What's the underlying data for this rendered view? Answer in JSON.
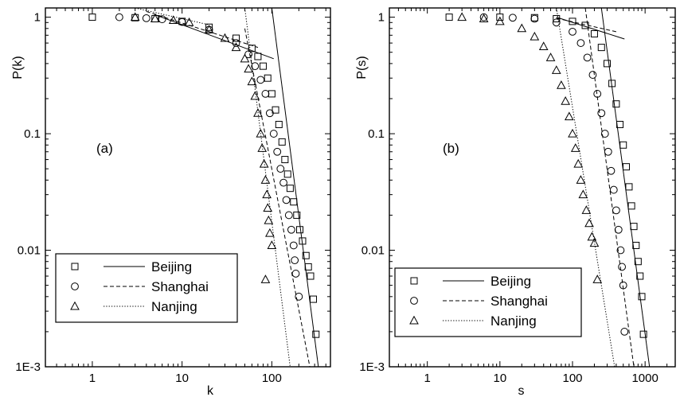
{
  "chart_data": [
    {
      "type": "scatter",
      "panel_label": "(a)",
      "xlabel": "k",
      "ylabel": "P(k)",
      "xscale": "log",
      "yscale": "log",
      "xlim": [
        0.3,
        450
      ],
      "ylim": [
        0.001,
        1.2
      ],
      "x_ticks": [
        1,
        10,
        100
      ],
      "x_tick_labels": [
        "1",
        "10",
        "100"
      ],
      "y_ticks": [
        0.001,
        0.01,
        0.1,
        1
      ],
      "y_tick_labels": [
        "1E-3",
        "0.01",
        "0.1",
        "1"
      ],
      "legend_position": "bottom-left",
      "series": [
        {
          "name": "Beijing",
          "marker": "square",
          "line_style": "solid",
          "points": [
            [
              1,
              1
            ],
            [
              3,
              0.99
            ],
            [
              5,
              0.97
            ],
            [
              10,
              0.92
            ],
            [
              20,
              0.82
            ],
            [
              40,
              0.66
            ],
            [
              60,
              0.54
            ],
            [
              70,
              0.46
            ],
            [
              80,
              0.38
            ],
            [
              90,
              0.3
            ],
            [
              100,
              0.22
            ],
            [
              110,
              0.16
            ],
            [
              120,
              0.12
            ],
            [
              130,
              0.085
            ],
            [
              140,
              0.06
            ],
            [
              150,
              0.045
            ],
            [
              160,
              0.034
            ],
            [
              175,
              0.026
            ],
            [
              190,
              0.02
            ],
            [
              205,
              0.015
            ],
            [
              220,
              0.012
            ],
            [
              240,
              0.009
            ],
            [
              255,
              0.0072
            ],
            [
              270,
              0.006
            ],
            [
              290,
              0.0038
            ],
            [
              310,
              0.0019
            ]
          ],
          "fits": [
            {
              "x": [
                5,
                105
              ],
              "y": [
                1.05,
                0.44
              ]
            },
            {
              "x": [
                100,
                330
              ],
              "y": [
                1.2,
                0.001
              ]
            }
          ]
        },
        {
          "name": "Shanghai",
          "marker": "circle",
          "line_style": "dashed",
          "points": [
            [
              2,
              1
            ],
            [
              4,
              0.98
            ],
            [
              6,
              0.96
            ],
            [
              10,
              0.91
            ],
            [
              20,
              0.78
            ],
            [
              40,
              0.6
            ],
            [
              55,
              0.48
            ],
            [
              65,
              0.38
            ],
            [
              75,
              0.29
            ],
            [
              85,
              0.22
            ],
            [
              95,
              0.15
            ],
            [
              105,
              0.1
            ],
            [
              115,
              0.07
            ],
            [
              125,
              0.05
            ],
            [
              135,
              0.038
            ],
            [
              145,
              0.027
            ],
            [
              155,
              0.02
            ],
            [
              165,
              0.015
            ],
            [
              175,
              0.011
            ],
            [
              180,
              0.0082
            ],
            [
              185,
              0.0063
            ],
            [
              200,
              0.004
            ]
          ],
          "fits": [
            {
              "x": [
                4,
                70
              ],
              "y": [
                1.12,
                0.55
              ]
            },
            {
              "x": [
                50,
                265
              ],
              "y": [
                0.8,
                0.001
              ]
            }
          ]
        },
        {
          "name": "Nanjing",
          "marker": "triangle",
          "line_style": "dotted",
          "points": [
            [
              3,
              1
            ],
            [
              5,
              0.97
            ],
            [
              8,
              0.94
            ],
            [
              12,
              0.9
            ],
            [
              20,
              0.78
            ],
            [
              30,
              0.66
            ],
            [
              40,
              0.55
            ],
            [
              50,
              0.44
            ],
            [
              55,
              0.36
            ],
            [
              60,
              0.28
            ],
            [
              65,
              0.21
            ],
            [
              70,
              0.15
            ],
            [
              75,
              0.1
            ],
            [
              78,
              0.075
            ],
            [
              82,
              0.055
            ],
            [
              85,
              0.04
            ],
            [
              88,
              0.03
            ],
            [
              90,
              0.023
            ],
            [
              92,
              0.018
            ],
            [
              95,
              0.014
            ],
            [
              100,
              0.011
            ],
            [
              85,
              0.0056
            ]
          ],
          "fits": [
            {
              "x": [
                3,
                20
              ],
              "y": [
                1.2,
                0.86
              ]
            },
            {
              "x": [
                50,
                160
              ],
              "y": [
                1.2,
                0.001
              ]
            }
          ]
        }
      ]
    },
    {
      "type": "scatter",
      "panel_label": "(b)",
      "xlabel": "s",
      "ylabel": "P(s)",
      "xscale": "log",
      "yscale": "log",
      "xlim": [
        0.3,
        2600
      ],
      "ylim": [
        0.001,
        1.2
      ],
      "x_ticks": [
        1,
        10,
        100,
        1000
      ],
      "x_tick_labels": [
        "1",
        "10",
        "100",
        "1000"
      ],
      "y_ticks": [
        0.001,
        0.01,
        0.1,
        1
      ],
      "y_tick_labels": [
        "1E-3",
        "0.01",
        "0.1",
        "1"
      ],
      "legend_position": "bottom-left",
      "series": [
        {
          "name": "Beijing",
          "marker": "square",
          "line_style": "solid",
          "points": [
            [
              2,
              1
            ],
            [
              10,
              1
            ],
            [
              30,
              0.99
            ],
            [
              60,
              0.97
            ],
            [
              100,
              0.92
            ],
            [
              150,
              0.85
            ],
            [
              200,
              0.72
            ],
            [
              250,
              0.55
            ],
            [
              300,
              0.4
            ],
            [
              350,
              0.27
            ],
            [
              400,
              0.18
            ],
            [
              450,
              0.12
            ],
            [
              500,
              0.08
            ],
            [
              550,
              0.052
            ],
            [
              600,
              0.035
            ],
            [
              650,
              0.024
            ],
            [
              700,
              0.016
            ],
            [
              750,
              0.011
            ],
            [
              800,
              0.008
            ],
            [
              850,
              0.006
            ],
            [
              900,
              0.004
            ],
            [
              950,
              0.0019
            ]
          ],
          "fits": [
            {
              "x": [
                60,
                520
              ],
              "y": [
                1.0,
                0.65
              ]
            },
            {
              "x": [
                250,
                1150
              ],
              "y": [
                1.2,
                0.001
              ]
            }
          ]
        },
        {
          "name": "Shanghai",
          "marker": "circle",
          "line_style": "dashed",
          "points": [
            [
              6,
              1
            ],
            [
              15,
              0.99
            ],
            [
              30,
              0.97
            ],
            [
              60,
              0.9
            ],
            [
              100,
              0.75
            ],
            [
              130,
              0.6
            ],
            [
              160,
              0.45
            ],
            [
              190,
              0.32
            ],
            [
              220,
              0.22
            ],
            [
              250,
              0.15
            ],
            [
              280,
              0.1
            ],
            [
              310,
              0.07
            ],
            [
              340,
              0.048
            ],
            [
              370,
              0.033
            ],
            [
              400,
              0.022
            ],
            [
              430,
              0.015
            ],
            [
              460,
              0.01
            ],
            [
              480,
              0.0072
            ],
            [
              500,
              0.005
            ],
            [
              520,
              0.002
            ]
          ],
          "fits": [
            {
              "x": [
                60,
                400
              ],
              "y": [
                0.98,
                0.75
              ]
            },
            {
              "x": [
                150,
                700
              ],
              "y": [
                1.2,
                0.001
              ]
            }
          ]
        },
        {
          "name": "Nanjing",
          "marker": "triangle",
          "line_style": "dotted",
          "points": [
            [
              3,
              1
            ],
            [
              6,
              0.97
            ],
            [
              10,
              0.92
            ],
            [
              20,
              0.8
            ],
            [
              30,
              0.68
            ],
            [
              40,
              0.56
            ],
            [
              50,
              0.45
            ],
            [
              60,
              0.35
            ],
            [
              70,
              0.26
            ],
            [
              80,
              0.19
            ],
            [
              90,
              0.14
            ],
            [
              100,
              0.1
            ],
            [
              110,
              0.075
            ],
            [
              120,
              0.055
            ],
            [
              130,
              0.04
            ],
            [
              140,
              0.03
            ],
            [
              155,
              0.022
            ],
            [
              170,
              0.017
            ],
            [
              185,
              0.013
            ],
            [
              200,
              0.0115
            ],
            [
              220,
              0.0056
            ]
          ],
          "fits": [
            {
              "x": [
                60,
                380
              ],
              "y": [
                1.2,
                0.001
              ]
            }
          ]
        }
      ]
    }
  ]
}
